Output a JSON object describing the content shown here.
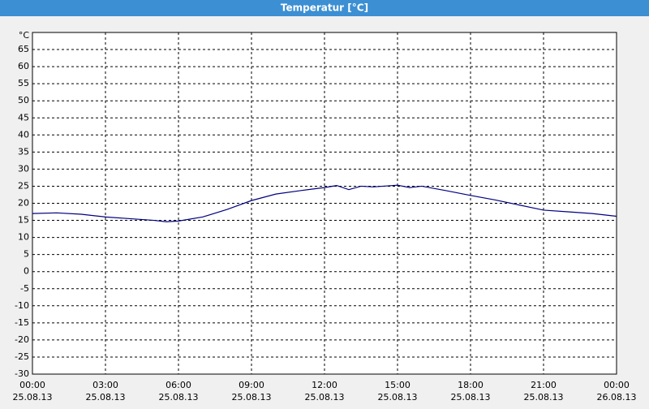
{
  "chart_data": {
    "type": "line",
    "title": "Temperatur [°C]",
    "y_unit": "°C",
    "x": [
      0,
      1,
      2,
      3,
      4,
      5,
      5.5,
      6,
      7,
      8,
      9,
      10,
      11,
      12,
      12.5,
      13,
      13.5,
      14,
      15,
      15.5,
      16,
      17,
      18,
      19,
      20,
      21,
      22,
      23,
      24
    ],
    "series": [
      {
        "name": "Temperatur",
        "color": "#00007f",
        "values": [
          17,
          17.2,
          16.8,
          16,
          15.5,
          15,
          14.6,
          14.8,
          16,
          18.2,
          20.8,
          22.7,
          23.7,
          24.6,
          25.2,
          24,
          25,
          24.8,
          25.3,
          24.6,
          25,
          23.7,
          22.3,
          21,
          19.5,
          18,
          17.5,
          17,
          16.2
        ]
      }
    ],
    "xlim": [
      0,
      24
    ],
    "xticks": [
      {
        "value": 0,
        "label": [
          "00:00",
          "25.08.13"
        ]
      },
      {
        "value": 3,
        "label": [
          "03:00",
          "25.08.13"
        ]
      },
      {
        "value": 6,
        "label": [
          "06:00",
          "25.08.13"
        ]
      },
      {
        "value": 9,
        "label": [
          "09:00",
          "25.08.13"
        ]
      },
      {
        "value": 12,
        "label": [
          "12:00",
          "25.08.13"
        ]
      },
      {
        "value": 15,
        "label": [
          "15:00",
          "25.08.13"
        ]
      },
      {
        "value": 18,
        "label": [
          "18:00",
          "25.08.13"
        ]
      },
      {
        "value": 21,
        "label": [
          "21:00",
          "25.08.13"
        ]
      },
      {
        "value": 24,
        "label": [
          "00:00",
          "26.08.13"
        ]
      }
    ],
    "ylim": [
      -30,
      70
    ],
    "yticks": [
      -30,
      -25,
      -20,
      -15,
      -10,
      -5,
      0,
      5,
      10,
      15,
      20,
      25,
      30,
      35,
      40,
      45,
      50,
      55,
      60,
      65
    ],
    "grid": true
  }
}
